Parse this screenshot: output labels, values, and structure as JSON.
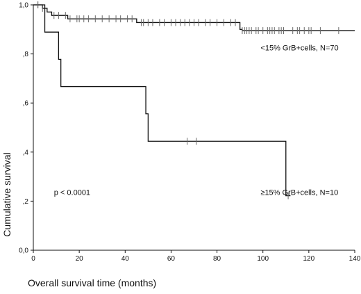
{
  "chart_data": {
    "type": "line",
    "subtype": "kaplan-meier step",
    "title": "",
    "xlabel": "Overall survival time (months)",
    "ylabel": "Cumulative survival",
    "xlim": [
      0,
      140
    ],
    "ylim": [
      0,
      1
    ],
    "x_ticks": [
      {
        "value": 0,
        "label": "0"
      },
      {
        "value": 20,
        "label": "20"
      },
      {
        "value": 40,
        "label": "40"
      },
      {
        "value": 60,
        "label": "60"
      },
      {
        "value": 80,
        "label": "80"
      },
      {
        "value": 100,
        "label": "100"
      },
      {
        "value": 120,
        "label": "120"
      },
      {
        "value": 140,
        "label": "140"
      }
    ],
    "y_ticks": [
      {
        "value": 0.0,
        "label": "0,0"
      },
      {
        "value": 0.2,
        "label": ",2"
      },
      {
        "value": 0.4,
        "label": ",4"
      },
      {
        "value": 0.6,
        "label": ",6"
      },
      {
        "value": 0.8,
        "label": ",8"
      },
      {
        "value": 1.0,
        "label": "1,0"
      }
    ],
    "grid": false,
    "colors": {
      "line": "#111111",
      "censor": "#666666"
    },
    "series": [
      {
        "name": "<15% GrB+cells, N=70",
        "steps": [
          [
            0,
            1.0
          ],
          [
            4,
            0.986
          ],
          [
            6,
            0.971
          ],
          [
            8,
            0.957
          ],
          [
            15,
            0.943
          ],
          [
            45,
            0.928
          ],
          [
            90,
            0.9
          ],
          [
            91,
            0.895
          ],
          [
            140,
            0.895
          ]
        ],
        "censored_x": [
          2,
          4,
          9,
          11,
          14,
          16,
          19,
          20,
          22,
          24,
          27,
          30,
          33,
          36,
          38,
          41,
          43,
          47,
          48,
          50,
          52,
          55,
          57,
          60,
          62,
          64,
          66,
          68,
          70,
          72,
          75,
          77,
          80,
          83,
          86,
          88,
          91,
          92,
          93,
          94,
          95,
          97,
          98,
          100,
          102,
          103,
          104,
          105,
          107,
          108,
          109,
          113,
          115,
          116,
          118,
          120,
          121,
          125,
          133
        ]
      },
      {
        "name": "≥15% GrB+cells, N=10",
        "steps": [
          [
            0,
            1.0
          ],
          [
            5,
            0.889
          ],
          [
            11,
            0.778
          ],
          [
            12,
            0.667
          ],
          [
            49,
            0.556
          ],
          [
            50,
            0.444
          ],
          [
            110,
            0.222
          ],
          [
            112,
            0.222
          ]
        ],
        "censored_x": [
          2,
          67,
          71,
          111
        ]
      }
    ],
    "annotations": [
      {
        "text": "p < 0.0001",
        "x": 9,
        "y": 0.225
      },
      {
        "text": "<15% GrB+cells, N=70",
        "x": 99,
        "y": 0.815
      },
      {
        "text": "≥15% GrB+cells, N=10",
        "x": 99,
        "y": 0.225
      }
    ]
  }
}
